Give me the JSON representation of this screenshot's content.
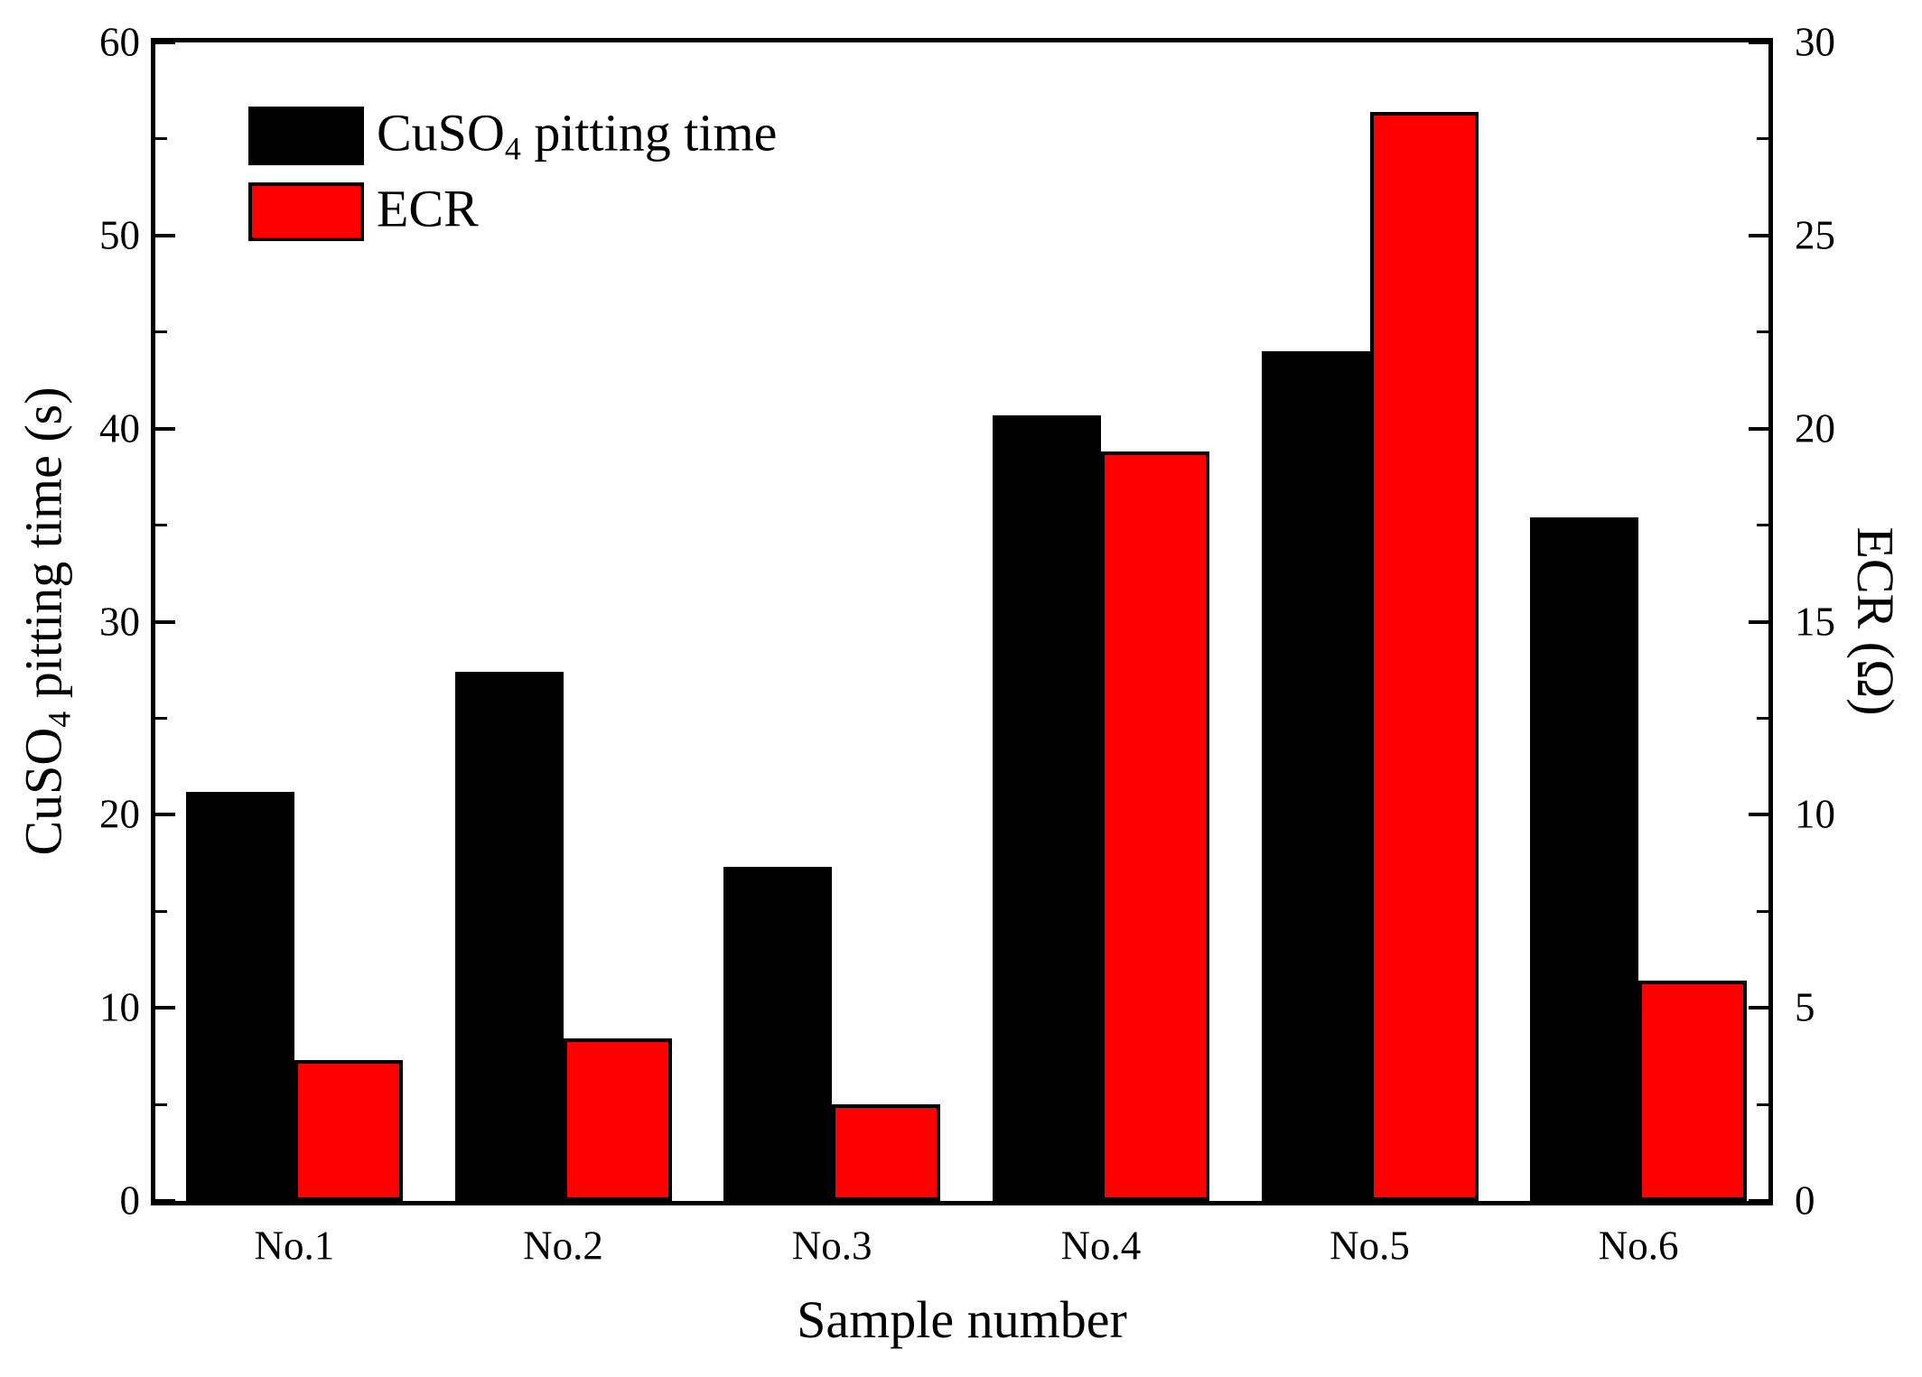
{
  "chart_data": {
    "type": "bar",
    "title": "",
    "categories": [
      "No.1",
      "No.2",
      "No.3",
      "No.4",
      "No.5",
      "No.6"
    ],
    "series": [
      {
        "name": "CuSO4 pitting time",
        "axis": "left",
        "color": "#000000",
        "values": [
          21.2,
          27.4,
          17.3,
          40.7,
          44.0,
          35.4
        ]
      },
      {
        "name": "ECR",
        "axis": "right",
        "color": "#ff0000",
        "values": [
          3.65,
          4.2,
          2.5,
          19.4,
          28.2,
          5.7
        ]
      }
    ],
    "xlabel": "Sample number",
    "ylabel_left": "CuSO4 pitting time (s)",
    "ylabel_right": "ECR (Ohm)",
    "ylim_left": [
      0,
      60
    ],
    "ylim_right": [
      0,
      30
    ],
    "yticks_left": [
      0,
      10,
      20,
      30,
      40,
      50,
      60
    ],
    "yticks_minor_left": [
      5,
      15,
      25,
      35,
      45,
      55
    ],
    "yticks_right": [
      0,
      5,
      10,
      15,
      20,
      25,
      30
    ],
    "yticks_minor_right": [
      2.5,
      7.5,
      12.5,
      17.5,
      22.5,
      27.5
    ],
    "grid": false,
    "legend_position": "top-left",
    "frame": "full-box",
    "tick_direction": "in"
  },
  "display": {
    "left_title": {
      "pre": "CuSO",
      "sub": "4",
      "post": " pitting time (s)"
    },
    "right_title": "ECR (Ω)",
    "x_title": "Sample number",
    "legend": [
      {
        "pre": "CuSO",
        "sub": "4",
        "post": " pitting time"
      },
      {
        "pre": "ECR",
        "sub": "",
        "post": ""
      }
    ]
  },
  "colors": {
    "background": "#ffffff",
    "axis": "#000000",
    "bar_black": "#000000",
    "bar_red": "#ff0000"
  }
}
